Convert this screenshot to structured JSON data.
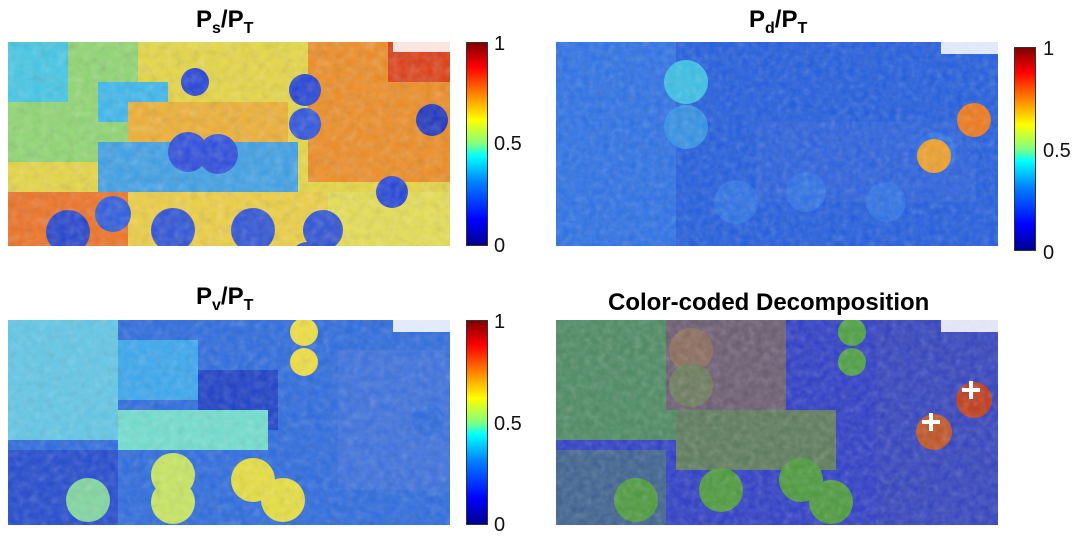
{
  "panels": [
    {
      "main": "P",
      "sub1": "s",
      "sep": "/",
      "main2": "P",
      "sub2": "T"
    },
    {
      "main": "P",
      "sub1": "d",
      "sep": "/",
      "main2": "P",
      "sub2": "T"
    },
    {
      "main": "P",
      "sub1": "v",
      "sep": "/",
      "main2": "P",
      "sub2": "T"
    },
    {
      "title": "Color-coded Decomposition"
    }
  ],
  "colorbar_ticks": [
    "1",
    "0.5",
    "0"
  ],
  "colors": {
    "blue": "#2a7fd8",
    "cyan": "#38d0f0",
    "yellow": "#f0e040",
    "red": "#d02010",
    "comp_green": "#4a9a3a",
    "comp_blue": "#2a3ac8",
    "comp_red": "#c03018"
  }
}
